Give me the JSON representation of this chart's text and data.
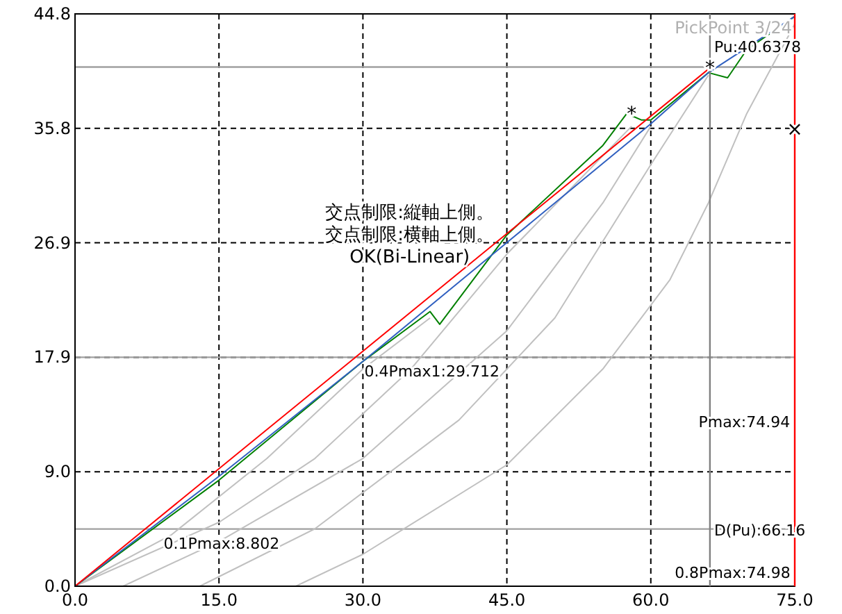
{
  "chart_data": {
    "type": "line",
    "xlim": [
      0,
      75
    ],
    "ylim": [
      0,
      44.8
    ],
    "xticks": [
      {
        "value": 0,
        "label": "0.0"
      },
      {
        "value": 15,
        "label": "15.0"
      },
      {
        "value": 30,
        "label": "30.0"
      },
      {
        "value": 45,
        "label": "45.0"
      },
      {
        "value": 60,
        "label": "60.0"
      },
      {
        "value": 75,
        "label": "75.0"
      }
    ],
    "yticks": [
      {
        "value": 0,
        "label": "0.0"
      },
      {
        "value": 8.96,
        "label": "9.0"
      },
      {
        "value": 17.92,
        "label": "17.9"
      },
      {
        "value": 26.88,
        "label": "26.9"
      },
      {
        "value": 35.84,
        "label": "35.8"
      },
      {
        "value": 44.8,
        "label": "44.8"
      }
    ],
    "grid": true,
    "line_style": "solid",
    "marker": "none",
    "series": [
      {
        "color": "#c0c0c0",
        "x": [
          0,
          10,
          20,
          30,
          37
        ],
        "values": [
          0,
          4,
          10,
          17,
          21
        ]
      },
      {
        "color": "#c0c0c0",
        "x": [
          0,
          15,
          25,
          35,
          45,
          58
        ],
        "values": [
          0,
          5,
          10,
          17,
          26,
          36
        ]
      },
      {
        "color": "#c0c0c0",
        "x": [
          5,
          15,
          30,
          45,
          55,
          60
        ],
        "values": [
          0,
          3.5,
          10,
          20,
          30,
          36
        ]
      },
      {
        "color": "#c0c0c0",
        "x": [
          13,
          25,
          40,
          50,
          60,
          66
        ],
        "values": [
          0,
          4.5,
          13,
          21,
          33,
          40
        ]
      },
      {
        "color": "#c0c0c0",
        "x": [
          23,
          30,
          45,
          55,
          62,
          66,
          70,
          75
        ],
        "values": [
          0,
          2.5,
          9.5,
          17,
          24,
          30,
          37,
          44
        ]
      },
      {
        "color": "#008000",
        "x": [
          0,
          15,
          30,
          37,
          38,
          45,
          55,
          57.5,
          59,
          60,
          66,
          68,
          70,
          75
        ],
        "values": [
          0,
          8.3,
          17.6,
          21.5,
          20.5,
          27.5,
          34.5,
          37,
          36.5,
          36.5,
          40.2,
          39.8,
          42,
          44.6
        ]
      },
      {
        "color": "#3060c0",
        "x": [
          0,
          15,
          30,
          45,
          60,
          66,
          75
        ],
        "values": [
          0,
          8.6,
          17.6,
          26.9,
          36.2,
          40.2,
          44.6
        ]
      },
      {
        "color": "#ff0000",
        "x": [
          0,
          66.2
        ],
        "values": [
          0,
          40.6
        ]
      }
    ],
    "ref_lines": [
      {
        "axis": "y",
        "value": 17.92,
        "color": "#a0a0a0"
      },
      {
        "axis": "y",
        "value": 4.48,
        "color": "#a0a0a0"
      },
      {
        "axis": "y",
        "value": 40.64,
        "color": "#a0a0a0"
      },
      {
        "axis": "x",
        "value": 66.16,
        "color": "#808080"
      },
      {
        "axis": "x",
        "value": 75,
        "color": "#ff0000"
      }
    ],
    "annotations": [
      "PickPoint 3/24",
      "交点制限:縦軸上側。",
      "交点制限:横軸上側。",
      "OK(Bi-Linear)",
      {
        "text": "Pu:40.6378",
        "x": 66.16,
        "y": 41.6
      },
      {
        "text": "0.4Pmax1:29.712",
        "x": 29.712,
        "y": 17.92
      },
      {
        "text": "0.1Pmax:8.802",
        "x": 8.802,
        "y": 4.48
      },
      {
        "text": "Pmax:74.94",
        "x": 74.94,
        "y": 14
      },
      {
        "text": "D(Pu):66.16",
        "x": 66.16,
        "y": 5.5
      },
      {
        "text": "0.8Pmax:74.98",
        "x": 74.98,
        "y": 2.2
      },
      {
        "text": "*",
        "x": 58,
        "y": 37
      },
      {
        "text": "*",
        "x": 66.16,
        "y": 40.64
      },
      {
        "text": "×",
        "x": 75,
        "y": 35.84
      }
    ]
  }
}
